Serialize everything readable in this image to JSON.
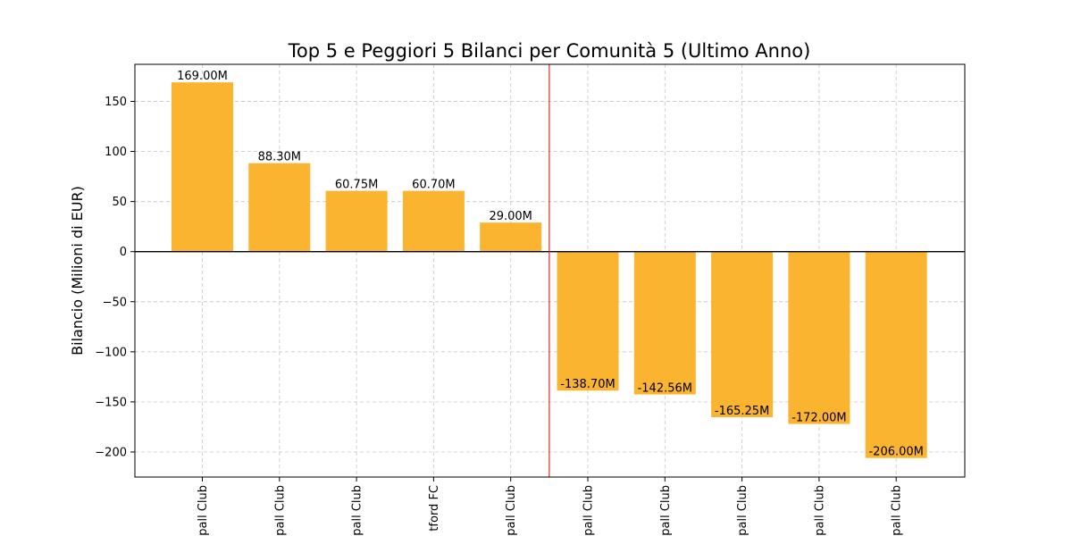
{
  "chart_data": {
    "type": "bar",
    "title": "Top 5 e Peggiori 5 Bilanci per Comunità 5 (Ultimo Anno)",
    "xlabel": "",
    "ylabel": "Bilancio (Milioni di EUR)",
    "categories": [
      "pall Club",
      "pall Club",
      "pall Club",
      "tford FC",
      "pall Club",
      "pall Club",
      "pall Club",
      "pall Club",
      "pall Club",
      "pall Club"
    ],
    "values": [
      169.0,
      88.3,
      60.75,
      60.7,
      29.0,
      -138.7,
      -142.56,
      -165.25,
      -172.0,
      -206.0
    ],
    "data_labels": [
      "169.00M",
      "88.30M",
      "60.75M",
      "60.70M",
      "29.00M",
      "-138.70M",
      "-142.56M",
      "-165.25M",
      "-172.00M",
      "-206.00M"
    ],
    "ylim": [
      -225,
      187
    ],
    "yticks": [
      150,
      100,
      50,
      0,
      -50,
      -100,
      -150,
      -200
    ],
    "ytick_labels": [
      "150",
      "100",
      "50",
      "0",
      "−50",
      "−100",
      "−150",
      "−200"
    ],
    "grid": true,
    "bar_color": "#FBB430",
    "separator_color": "#E8282B",
    "zero_line_color": "#000000"
  }
}
